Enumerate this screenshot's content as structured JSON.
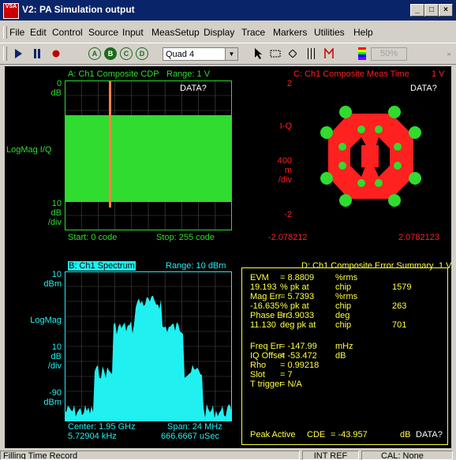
{
  "window": {
    "icon_text": "VSA",
    "title": "V2: PA Simulation output"
  },
  "menu": [
    "File",
    "Edit",
    "Control",
    "Source",
    "Input",
    "MeasSetup",
    "Display",
    "Trace",
    "Markers",
    "Utilities",
    "Help"
  ],
  "toolbar": {
    "traces": [
      "A",
      "B",
      "C",
      "D"
    ],
    "layout_select": "Quad 4",
    "zoom": "50%"
  },
  "trace_a": {
    "header": "A: Ch1 Composite CDP",
    "range": "Range: 1 V",
    "data_flag": "DATA?",
    "y_top": "0",
    "y_top_unit": "dB",
    "y_format": "LogMag I/Q",
    "y_scale": "10",
    "y_scale_unit": "dB",
    "y_scale_div": "/div",
    "start": "Start: 0 code",
    "stop": "Stop: 255 code"
  },
  "trace_c": {
    "header": "C: Ch1 Composite Meas Time",
    "range": "1 V",
    "data_flag": "DATA?",
    "y_top": "2",
    "y_format": "I-Q",
    "y_scale": "400",
    "y_scale_unit": "m",
    "y_scale_div": "/div",
    "y_bottom": "-2",
    "x_left": "-2.078212",
    "x_right": "2.0782123"
  },
  "trace_b": {
    "header": "B: Ch1 Spectrum",
    "range": "Range: 10 dBm",
    "y_top": "10",
    "y_top_unit": "dBm",
    "y_format": "LogMag",
    "y_scale": "10",
    "y_scale_unit": "dB",
    "y_scale_div": "/div",
    "y_bottom": "-90",
    "y_bottom_unit": "dBm",
    "center": "Center: 1.95 GHz",
    "span": "Span: 24 MHz",
    "rbw": "5.72904 kHz",
    "time": "666.6667 uSec"
  },
  "trace_d": {
    "header": "D: Ch1 Composite Error Summary",
    "range": "1 V",
    "rows": [
      {
        "name": "EVM",
        "value": "= 8.8809",
        "unit": "%rms",
        "extra": ""
      },
      {
        "name": "19.193",
        "value": "% pk at",
        "unit": "chip",
        "extra": "1579"
      },
      {
        "name": "Mag Err",
        "value": "= 5.7393",
        "unit": "%rms",
        "extra": ""
      },
      {
        "name": "-16.635",
        "value": "% pk at",
        "unit": "chip",
        "extra": "263"
      },
      {
        "name": "Phase Err",
        "value": "= 3.9033",
        "unit": "deg",
        "extra": ""
      },
      {
        "name": "11.130",
        "value": "deg pk at",
        "unit": "chip",
        "extra": "701"
      },
      {
        "name": "Freq Err",
        "value": "= -147.99",
        "unit": "mHz",
        "extra": ""
      },
      {
        "name": "IQ Offset",
        "value": "= -53.472",
        "unit": "dB",
        "extra": ""
      },
      {
        "name": "Rho",
        "value": "= 0.99218",
        "unit": "",
        "extra": ""
      },
      {
        "name": "Slot",
        "value": "= 7",
        "unit": "",
        "extra": ""
      },
      {
        "name": "T trigger",
        "value": "= N/A",
        "unit": "",
        "extra": ""
      }
    ],
    "peak_label": "Peak Active",
    "peak_name": "CDE",
    "peak_value": "= -43.957",
    "peak_unit": "dB",
    "data_flag": "DATA?"
  },
  "status": {
    "message": "Filling Time Record",
    "ref": "INT REF",
    "cal": "CAL: None"
  },
  "colors": {
    "green": "#2fdc2f",
    "red": "#ff2020",
    "cyan": "#20f0f0",
    "yellow": "#ffff40",
    "titlebar": "#0a246a"
  }
}
